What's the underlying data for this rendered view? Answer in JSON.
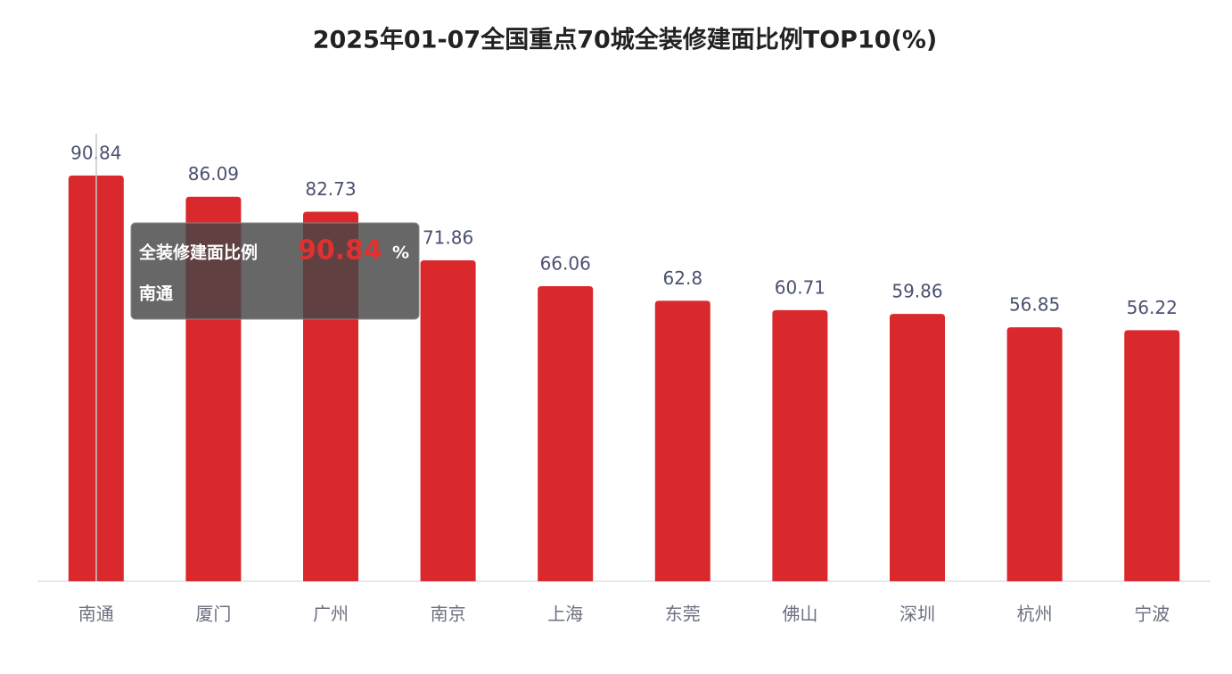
{
  "chart_data": {
    "type": "bar",
    "title": "2025年01-07全国重点70城全装修建面比例TOP10(%)",
    "categories": [
      "南通",
      "厦门",
      "广州",
      "南京",
      "上海",
      "东莞",
      "佛山",
      "深圳",
      "杭州",
      "宁波"
    ],
    "values": [
      90.84,
      86.09,
      82.73,
      71.86,
      66.06,
      62.8,
      60.71,
      59.86,
      56.85,
      56.22
    ],
    "color": "#d9292c",
    "tooltip": {
      "label": "全装修建面比例",
      "unit": "%"
    }
  }
}
